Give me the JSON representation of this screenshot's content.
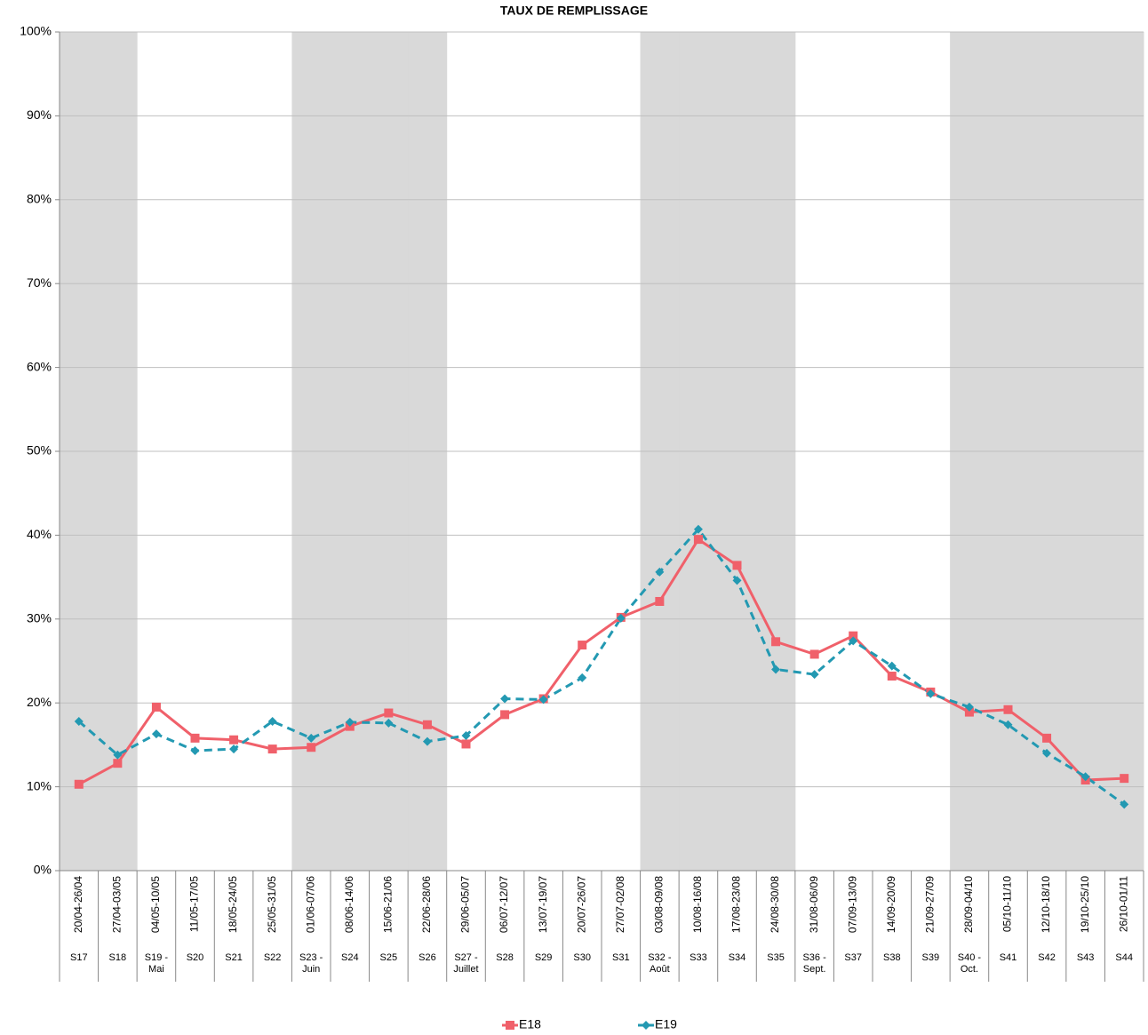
{
  "chart_data": {
    "type": "line",
    "title": "TAUX DE REMPLISSAGE",
    "categories": [
      "S17",
      "S18",
      "S19 - Mai",
      "S20",
      "S21",
      "S22",
      "S23 - Juin",
      "S24",
      "S25",
      "S26",
      "S27 - Juillet",
      "S28",
      "S29",
      "S30",
      "S31",
      "S32 - Août",
      "S33",
      "S34",
      "S35",
      "S36 - Sept.",
      "S37",
      "S38",
      "S39",
      "S40 - Oct.",
      "S41",
      "S42",
      "S43",
      "S44"
    ],
    "date_ranges": [
      "20/04-26/04",
      "27/04-03/05",
      "04/05-10/05",
      "11/05-17/05",
      "18/05-24/05",
      "25/05-31/05",
      "01/06-07/06",
      "08/06-14/06",
      "15/06-21/06",
      "22/06-28/06",
      "29/06-05/07",
      "06/07-12/07",
      "13/07-19/07",
      "20/07-26/07",
      "27/07-02/08",
      "03/08-09/08",
      "10/08-16/08",
      "17/08-23/08",
      "24/08-30/08",
      "31/08-06/09",
      "07/09-13/09",
      "14/09-20/09",
      "21/09-27/09",
      "28/09-04/10",
      "05/10-11/10",
      "12/10-18/10",
      "19/10-25/10",
      "26/10-01/11"
    ],
    "shaded_categories": [
      "S17",
      "S18",
      "S23 - Juin",
      "S24",
      "S25",
      "S26",
      "S32 - Août",
      "S33",
      "S34",
      "S35",
      "S40 - Oct.",
      "S41",
      "S42",
      "S43",
      "S44"
    ],
    "shade_color": "#d9d9d9",
    "series": [
      {
        "name": "E18",
        "color": "#f0606a",
        "marker": "square",
        "dashed": false,
        "values": [
          10.3,
          12.8,
          19.5,
          15.8,
          15.6,
          14.5,
          14.7,
          17.2,
          18.8,
          17.4,
          15.1,
          18.6,
          20.5,
          26.9,
          30.2,
          32.1,
          39.5,
          36.4,
          27.3,
          25.8,
          28.0,
          23.2,
          21.3,
          18.9,
          19.2,
          15.8,
          10.8,
          11.0
        ]
      },
      {
        "name": "E19",
        "color": "#2399b2",
        "marker": "diamond",
        "dashed": true,
        "values": [
          17.8,
          13.8,
          16.3,
          14.3,
          14.5,
          17.8,
          15.8,
          17.7,
          17.6,
          15.4,
          16.1,
          20.5,
          20.4,
          23.0,
          30.1,
          35.6,
          40.7,
          34.6,
          24.0,
          23.4,
          27.4,
          24.4,
          21.1,
          19.5,
          17.4,
          14.0,
          11.2,
          7.9
        ]
      }
    ],
    "ylim": [
      0,
      100
    ],
    "yticks": [
      {
        "value": 0,
        "label": "0%"
      },
      {
        "value": 10,
        "label": "10%"
      },
      {
        "value": 20,
        "label": "20%"
      },
      {
        "value": 30,
        "label": "30%"
      },
      {
        "value": 40,
        "label": "40%"
      },
      {
        "value": 50,
        "label": "50%"
      },
      {
        "value": 60,
        "label": "60%"
      },
      {
        "value": 70,
        "label": "70%"
      },
      {
        "value": 80,
        "label": "80%"
      },
      {
        "value": 90,
        "label": "90%"
      },
      {
        "value": 100,
        "label": "100%"
      }
    ],
    "grid": true,
    "legend": "bottom"
  }
}
